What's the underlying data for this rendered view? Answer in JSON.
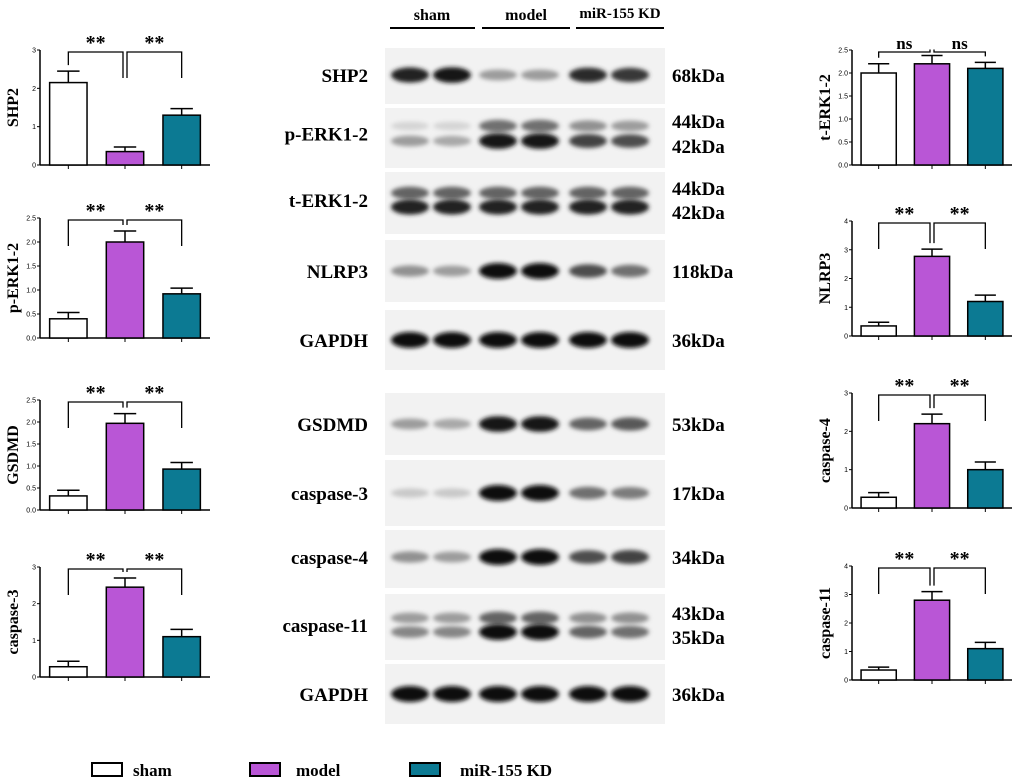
{
  "header": {
    "groups": [
      "sham",
      "model",
      "miR-155 KD"
    ]
  },
  "legend": {
    "items": [
      "sham",
      "model",
      "miR-155 KD"
    ]
  },
  "colors": {
    "sham": "#ffffff",
    "model": "#b956d6",
    "mir155kd": "#0c7a93"
  },
  "blots": [
    {
      "label": "SHP2",
      "kda": [
        "68kDa"
      ],
      "bands": [
        [
          0.9,
          0.95,
          0.35,
          0.35,
          0.85,
          0.8
        ]
      ]
    },
    {
      "label": "p-ERK1-2",
      "kda": [
        "44kDa",
        "42kDa"
      ],
      "bands": [
        [
          0.1,
          0.1,
          0.55,
          0.55,
          0.4,
          0.35
        ],
        [
          0.35,
          0.3,
          0.95,
          0.95,
          0.75,
          0.7
        ]
      ]
    },
    {
      "label": "t-ERK1-2",
      "kda": [
        "44kDa",
        "42kDa"
      ],
      "bands": [
        [
          0.6,
          0.6,
          0.6,
          0.6,
          0.6,
          0.6
        ],
        [
          0.9,
          0.9,
          0.9,
          0.9,
          0.9,
          0.9
        ]
      ]
    },
    {
      "label": "NLRP3",
      "kda": [
        "118kDa"
      ],
      "bands": [
        [
          0.4,
          0.35,
          1,
          1,
          0.7,
          0.55
        ]
      ]
    },
    {
      "label": "GAPDH",
      "kda": [
        "36kDa"
      ],
      "bands": [
        [
          1,
          1,
          1,
          1,
          1,
          1
        ]
      ]
    },
    {
      "label": "GSDMD",
      "kda": [
        "53kDa"
      ],
      "bands": [
        [
          0.35,
          0.3,
          0.95,
          0.95,
          0.6,
          0.65
        ]
      ]
    },
    {
      "label": "caspase-3",
      "kda": [
        "17kDa"
      ],
      "bands": [
        [
          0.15,
          0.15,
          1,
          1,
          0.55,
          0.5
        ]
      ]
    },
    {
      "label": "caspase-4",
      "kda": [
        "34kDa"
      ],
      "bands": [
        [
          0.4,
          0.35,
          1,
          1,
          0.7,
          0.75
        ]
      ]
    },
    {
      "label": "caspase-11",
      "kda": [
        "43kDa",
        "35kDa"
      ],
      "bands": [
        [
          0.35,
          0.35,
          0.6,
          0.6,
          0.4,
          0.4
        ],
        [
          0.45,
          0.45,
          1,
          1,
          0.6,
          0.55
        ]
      ]
    },
    {
      "label": "GAPDH",
      "kda": [
        "36kDa"
      ],
      "bands": [
        [
          1,
          1,
          1,
          1,
          1,
          1
        ]
      ]
    }
  ],
  "chart_data": [
    {
      "type": "bar",
      "ylabel": "SHP2",
      "categories": [
        "sham",
        "model",
        "miR-155 KD"
      ],
      "values": [
        2.15,
        0.35,
        1.3
      ],
      "errors": [
        0.3,
        0.12,
        0.17
      ],
      "ylim": [
        0,
        3
      ],
      "yticks": [
        "0",
        "1",
        "2",
        "3"
      ],
      "significance": [
        {
          "pair": [
            0,
            1
          ],
          "label": "**"
        },
        {
          "pair": [
            1,
            2
          ],
          "label": "**"
        }
      ]
    },
    {
      "type": "bar",
      "ylabel": "p-ERK1-2",
      "categories": [
        "sham",
        "model",
        "miR-155 KD"
      ],
      "values": [
        0.4,
        2.0,
        0.92
      ],
      "errors": [
        0.13,
        0.23,
        0.12
      ],
      "ylim": [
        0,
        2.5
      ],
      "yticks": [
        "0.0",
        "0.5",
        "1.0",
        "1.5",
        "2.0",
        "2.5"
      ],
      "significance": [
        {
          "pair": [
            0,
            1
          ],
          "label": "**"
        },
        {
          "pair": [
            1,
            2
          ],
          "label": "**"
        }
      ]
    },
    {
      "type": "bar",
      "ylabel": "GSDMD",
      "categories": [
        "sham",
        "model",
        "miR-155 KD"
      ],
      "values": [
        0.32,
        1.97,
        0.93
      ],
      "errors": [
        0.13,
        0.22,
        0.15
      ],
      "ylim": [
        0,
        2.5
      ],
      "yticks": [
        "0.0",
        "0.5",
        "1.0",
        "1.5",
        "2.0",
        "2.5"
      ],
      "significance": [
        {
          "pair": [
            0,
            1
          ],
          "label": "**"
        },
        {
          "pair": [
            1,
            2
          ],
          "label": "**"
        }
      ]
    },
    {
      "type": "bar",
      "ylabel": "caspase-3",
      "categories": [
        "sham",
        "model",
        "miR-155 KD"
      ],
      "values": [
        0.28,
        2.45,
        1.1
      ],
      "errors": [
        0.15,
        0.25,
        0.2
      ],
      "ylim": [
        0,
        3
      ],
      "yticks": [
        "0",
        "1",
        "2",
        "3"
      ],
      "significance": [
        {
          "pair": [
            0,
            1
          ],
          "label": "**"
        },
        {
          "pair": [
            1,
            2
          ],
          "label": "**"
        }
      ]
    },
    {
      "type": "bar",
      "ylabel": "t-ERK1-2",
      "categories": [
        "sham",
        "model",
        "miR-155 KD"
      ],
      "values": [
        2.0,
        2.2,
        2.1
      ],
      "errors": [
        0.2,
        0.18,
        0.13
      ],
      "ylim": [
        0,
        2.5
      ],
      "yticks": [
        "0.0",
        "0.5",
        "1.0",
        "1.5",
        "2.0",
        "2.5"
      ],
      "significance": [
        {
          "pair": [
            0,
            1
          ],
          "label": "ns"
        },
        {
          "pair": [
            1,
            2
          ],
          "label": "ns"
        }
      ]
    },
    {
      "type": "bar",
      "ylabel": "NLRP3",
      "categories": [
        "sham",
        "model",
        "miR-155 KD"
      ],
      "values": [
        0.35,
        2.77,
        1.2
      ],
      "errors": [
        0.13,
        0.25,
        0.22
      ],
      "ylim": [
        0,
        4
      ],
      "yticks": [
        "0",
        "1",
        "2",
        "3",
        "4"
      ],
      "significance": [
        {
          "pair": [
            0,
            1
          ],
          "label": "**"
        },
        {
          "pair": [
            1,
            2
          ],
          "label": "**"
        }
      ]
    },
    {
      "type": "bar",
      "ylabel": "caspase-4",
      "categories": [
        "sham",
        "model",
        "miR-155 KD"
      ],
      "values": [
        0.28,
        2.2,
        1.0
      ],
      "errors": [
        0.12,
        0.25,
        0.2
      ],
      "ylim": [
        0,
        3
      ],
      "yticks": [
        "0",
        "1",
        "2",
        "3"
      ],
      "significance": [
        {
          "pair": [
            0,
            1
          ],
          "label": "**"
        },
        {
          "pair": [
            1,
            2
          ],
          "label": "**"
        }
      ]
    },
    {
      "type": "bar",
      "ylabel": "caspase-11",
      "categories": [
        "sham",
        "model",
        "miR-155 KD"
      ],
      "values": [
        0.35,
        2.8,
        1.1
      ],
      "errors": [
        0.1,
        0.3,
        0.22
      ],
      "ylim": [
        0,
        4
      ],
      "yticks": [
        "0",
        "1",
        "2",
        "3",
        "4"
      ],
      "significance": [
        {
          "pair": [
            0,
            1
          ],
          "label": "**"
        },
        {
          "pair": [
            1,
            2
          ],
          "label": "**"
        }
      ]
    }
  ]
}
